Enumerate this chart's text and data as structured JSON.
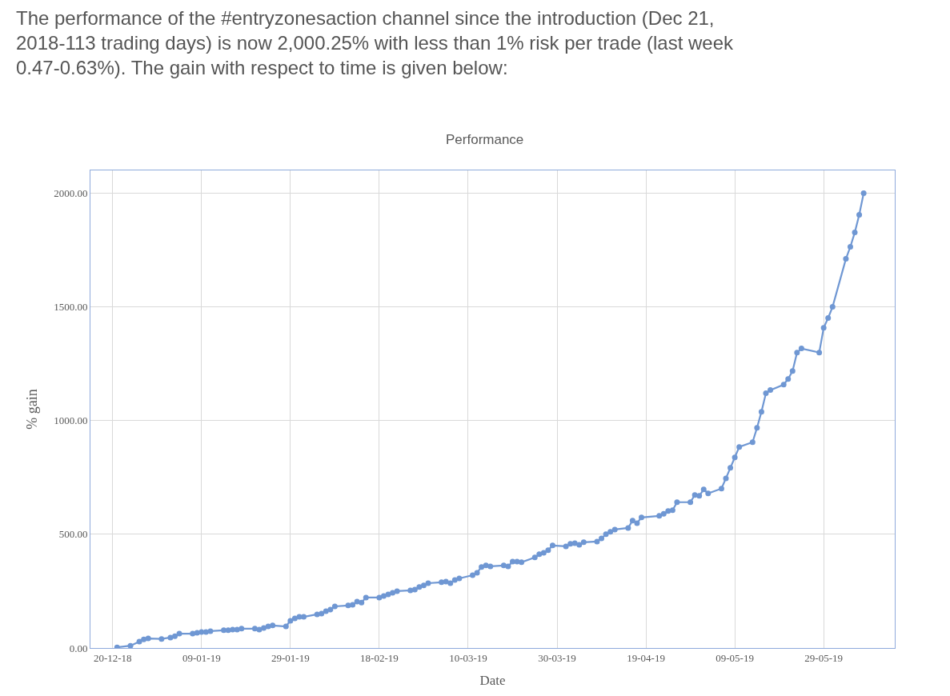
{
  "chart_data": {
    "type": "line",
    "subtitle": "The performance of the #entryzonesaction channel since the introduction (Dec 21, 2018-113 trading days) is now 2,000.25% with less than 1% risk per trade (last week 0.47-0.63%). The gain with respect to time is given below:",
    "title": "Performance",
    "xlabel": "Date",
    "ylabel": "% gain",
    "x": [
      "2018-12-21",
      "2018-12-24",
      "2018-12-26",
      "2018-12-27",
      "2018-12-28",
      "2018-12-31",
      "2019-01-02",
      "2019-01-03",
      "2019-01-04",
      "2019-01-07",
      "2019-01-08",
      "2019-01-09",
      "2019-01-10",
      "2019-01-11",
      "2019-01-14",
      "2019-01-15",
      "2019-01-16",
      "2019-01-17",
      "2019-01-18",
      "2019-01-21",
      "2019-01-22",
      "2019-01-23",
      "2019-01-24",
      "2019-01-25",
      "2019-01-28",
      "2019-01-29",
      "2019-01-30",
      "2019-01-31",
      "2019-02-01",
      "2019-02-04",
      "2019-02-05",
      "2019-02-06",
      "2019-02-07",
      "2019-02-08",
      "2019-02-11",
      "2019-02-12",
      "2019-02-13",
      "2019-02-14",
      "2019-02-15",
      "2019-02-18",
      "2019-02-19",
      "2019-02-20",
      "2019-02-21",
      "2019-02-22",
      "2019-02-25",
      "2019-02-26",
      "2019-02-27",
      "2019-02-28",
      "2019-03-01",
      "2019-03-04",
      "2019-03-05",
      "2019-03-06",
      "2019-03-07",
      "2019-03-08",
      "2019-03-11",
      "2019-03-12",
      "2019-03-13",
      "2019-03-14",
      "2019-03-15",
      "2019-03-18",
      "2019-03-19",
      "2019-03-20",
      "2019-03-21",
      "2019-03-22",
      "2019-03-25",
      "2019-03-26",
      "2019-03-27",
      "2019-03-28",
      "2019-03-29",
      "2019-04-01",
      "2019-04-02",
      "2019-04-03",
      "2019-04-04",
      "2019-04-05",
      "2019-04-08",
      "2019-04-09",
      "2019-04-10",
      "2019-04-11",
      "2019-04-12",
      "2019-04-15",
      "2019-04-16",
      "2019-04-17",
      "2019-04-18",
      "2019-04-22",
      "2019-04-23",
      "2019-04-24",
      "2019-04-25",
      "2019-04-26",
      "2019-04-29",
      "2019-04-30",
      "2019-05-01",
      "2019-05-02",
      "2019-05-03",
      "2019-05-06",
      "2019-05-07",
      "2019-05-08",
      "2019-05-09",
      "2019-05-10",
      "2019-05-13",
      "2019-05-14",
      "2019-05-15",
      "2019-05-16",
      "2019-05-17",
      "2019-05-20",
      "2019-05-21",
      "2019-05-22",
      "2019-05-23",
      "2019-05-24",
      "2019-05-28",
      "2019-05-29",
      "2019-05-30",
      "2019-05-31",
      "2019-06-03",
      "2019-06-04",
      "2019-06-05",
      "2019-06-06",
      "2019-06-07"
    ],
    "series": [
      {
        "color": "#6f97d3",
        "values": [
          3,
          10,
          28,
          38,
          42,
          40,
          46,
          52,
          63,
          63,
          67,
          70,
          70,
          74,
          78,
          78,
          81,
          81,
          85,
          85,
          81,
          88,
          95,
          99,
          95,
          120,
          130,
          137,
          137,
          148,
          151,
          162,
          169,
          183,
          187,
          190,
          204,
          200,
          222,
          222,
          229,
          236,
          243,
          250,
          253,
          257,
          268,
          275,
          285,
          289,
          292,
          285,
          299,
          306,
          320,
          331,
          356,
          363,
          359,
          363,
          359,
          380,
          380,
          377,
          398,
          412,
          419,
          430,
          451,
          447,
          458,
          461,
          454,
          465,
          468,
          482,
          500,
          511,
          521,
          528,
          560,
          549,
          574,
          581,
          590,
          602,
          606,
          641,
          641,
          673,
          669,
          697,
          680,
          701,
          746,
          792,
          838,
          884,
          905,
          968,
          1039,
          1120,
          1134,
          1158,
          1183,
          1218,
          1299,
          1317,
          1299,
          1408,
          1451,
          1500,
          1711,
          1764,
          1827,
          1905,
          2000
        ]
      }
    ],
    "xlim": [
      "2018-12-15",
      "2019-06-14"
    ],
    "xticks": [
      {
        "value": "2018-12-20",
        "label": "20-12-18"
      },
      {
        "value": "2019-01-09",
        "label": "09-01-19"
      },
      {
        "value": "2019-01-29",
        "label": "29-01-19"
      },
      {
        "value": "2019-02-18",
        "label": "18-02-19"
      },
      {
        "value": "2019-03-10",
        "label": "10-03-19"
      },
      {
        "value": "2019-03-30",
        "label": "30-03-19"
      },
      {
        "value": "2019-04-19",
        "label": "19-04-19"
      },
      {
        "value": "2019-05-09",
        "label": "09-05-19"
      },
      {
        "value": "2019-05-29",
        "label": "29-05-19"
      }
    ],
    "ylim": [
      0,
      2100
    ],
    "yticks": [
      {
        "value": 0,
        "label": "0.00"
      },
      {
        "value": 500,
        "label": "500.00"
      },
      {
        "value": 1000,
        "label": "1000.00"
      },
      {
        "value": 1500,
        "label": "1500.00"
      },
      {
        "value": 2000,
        "label": "2000.00"
      }
    ],
    "grid": true,
    "marker": "circle",
    "line_style": "solid"
  }
}
